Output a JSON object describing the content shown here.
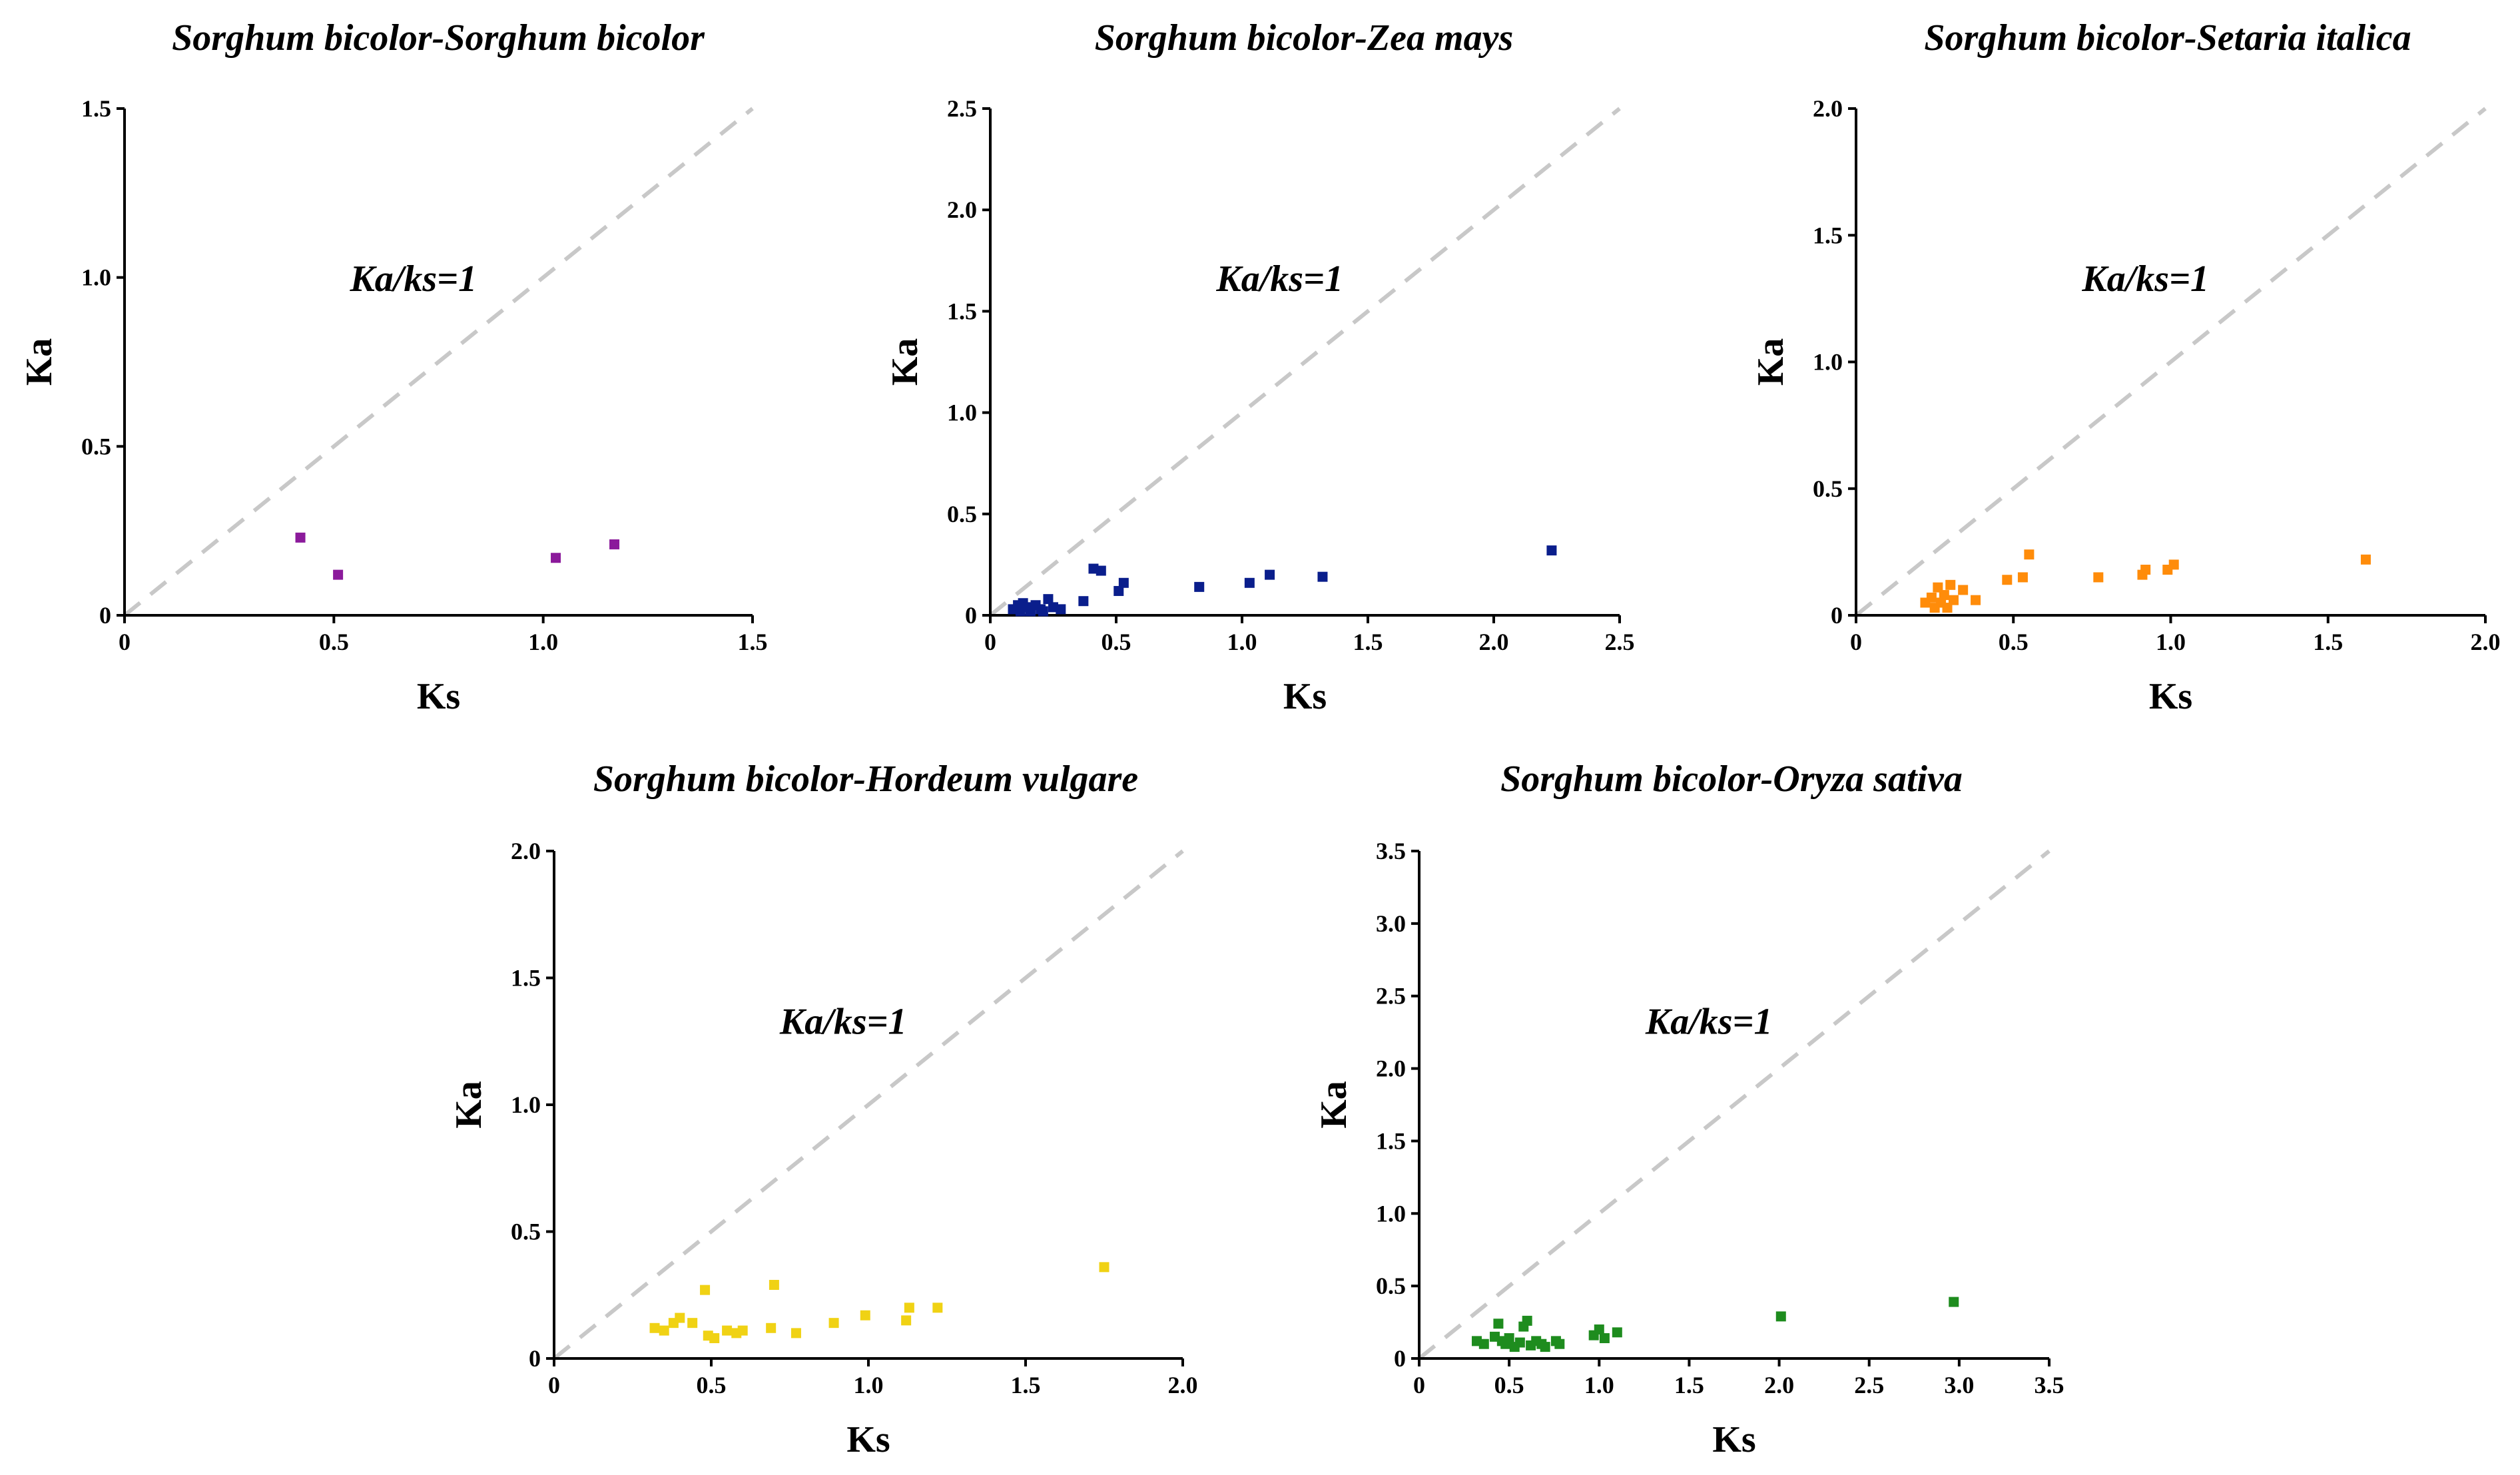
{
  "chart_data": [
    {
      "type": "scatter",
      "title": "Sorghum bicolor-Sorghum bicolor",
      "xlabel": "Ks",
      "ylabel": "Ka",
      "xlim": [
        0,
        1.5
      ],
      "ylim": [
        0,
        1.5
      ],
      "xticks": [
        "0",
        "0.5",
        "1.0",
        "1.5"
      ],
      "yticks": [
        "0",
        "0.5",
        "1.0",
        "1.5"
      ],
      "reference_line": {
        "label": "Ka/ks=1",
        "slope": 1
      },
      "color": "#8B1A9B",
      "points": [
        [
          0.42,
          0.23
        ],
        [
          0.51,
          0.12
        ],
        [
          1.03,
          0.17
        ],
        [
          1.17,
          0.21
        ]
      ]
    },
    {
      "type": "scatter",
      "title": "Sorghum bicolor-Zea mays",
      "xlabel": "Ks",
      "ylabel": "Ka",
      "xlim": [
        0,
        2.5
      ],
      "ylim": [
        0,
        2.5
      ],
      "xticks": [
        "0",
        "0.5",
        "1.0",
        "1.5",
        "2.0",
        "2.5"
      ],
      "yticks": [
        "0",
        "0.5",
        "1.0",
        "1.5",
        "2.0",
        "2.5"
      ],
      "reference_line": {
        "label": "Ka/ks=1",
        "slope": 1
      },
      "color": "#0A1E8C",
      "points": [
        [
          0.09,
          0.03
        ],
        [
          0.11,
          0.05
        ],
        [
          0.12,
          0.02
        ],
        [
          0.13,
          0.06
        ],
        [
          0.15,
          0.04
        ],
        [
          0.16,
          0.02
        ],
        [
          0.18,
          0.05
        ],
        [
          0.2,
          0.03
        ],
        [
          0.21,
          0.02
        ],
        [
          0.23,
          0.08
        ],
        [
          0.25,
          0.04
        ],
        [
          0.28,
          0.03
        ],
        [
          0.37,
          0.07
        ],
        [
          0.41,
          0.23
        ],
        [
          0.44,
          0.22
        ],
        [
          0.51,
          0.12
        ],
        [
          0.53,
          0.16
        ],
        [
          0.83,
          0.14
        ],
        [
          1.03,
          0.16
        ],
        [
          1.11,
          0.2
        ],
        [
          1.32,
          0.19
        ],
        [
          2.23,
          0.32
        ]
      ]
    },
    {
      "type": "scatter",
      "title": "Sorghum bicolor-Setaria italica",
      "xlabel": "Ks",
      "ylabel": "Ka",
      "xlim": [
        0,
        2.0
      ],
      "ylim": [
        0,
        2.0
      ],
      "xticks": [
        "0",
        "0.5",
        "1.0",
        "1.5",
        "2.0"
      ],
      "yticks": [
        "0",
        "0.5",
        "1.0",
        "1.5",
        "2.0"
      ],
      "reference_line": {
        "label": "Ka/ks=1",
        "slope": 1
      },
      "color": "#FF8C0A",
      "points": [
        [
          0.22,
          0.05
        ],
        [
          0.24,
          0.07
        ],
        [
          0.25,
          0.03
        ],
        [
          0.26,
          0.11
        ],
        [
          0.27,
          0.05
        ],
        [
          0.28,
          0.08
        ],
        [
          0.29,
          0.03
        ],
        [
          0.3,
          0.12
        ],
        [
          0.31,
          0.06
        ],
        [
          0.34,
          0.1
        ],
        [
          0.38,
          0.06
        ],
        [
          0.48,
          0.14
        ],
        [
          0.53,
          0.15
        ],
        [
          0.55,
          0.24
        ],
        [
          0.77,
          0.15
        ],
        [
          0.91,
          0.16
        ],
        [
          0.92,
          0.18
        ],
        [
          0.99,
          0.18
        ],
        [
          1.01,
          0.2
        ],
        [
          1.62,
          0.22
        ]
      ]
    },
    {
      "type": "scatter",
      "title": "Sorghum bicolor-Hordeum vulgare",
      "xlabel": "Ks",
      "ylabel": "Ka",
      "xlim": [
        0,
        2.0
      ],
      "ylim": [
        0,
        2.0
      ],
      "xticks": [
        "0",
        "0.5",
        "1.0",
        "1.5",
        "2.0"
      ],
      "yticks": [
        "0",
        "0.5",
        "1.0",
        "1.5",
        "2.0"
      ],
      "reference_line": {
        "label": "Ka/ks=1",
        "slope": 1
      },
      "color": "#F0D214",
      "points": [
        [
          0.32,
          0.12
        ],
        [
          0.35,
          0.11
        ],
        [
          0.38,
          0.14
        ],
        [
          0.4,
          0.16
        ],
        [
          0.44,
          0.14
        ],
        [
          0.48,
          0.27
        ],
        [
          0.49,
          0.09
        ],
        [
          0.51,
          0.08
        ],
        [
          0.55,
          0.11
        ],
        [
          0.58,
          0.1
        ],
        [
          0.6,
          0.11
        ],
        [
          0.69,
          0.12
        ],
        [
          0.7,
          0.29
        ],
        [
          0.77,
          0.1
        ],
        [
          0.89,
          0.14
        ],
        [
          0.99,
          0.17
        ],
        [
          1.12,
          0.15
        ],
        [
          1.13,
          0.2
        ],
        [
          1.22,
          0.2
        ],
        [
          1.75,
          0.36
        ]
      ]
    },
    {
      "type": "scatter",
      "title": "Sorghum bicolor-Oryza sativa",
      "xlabel": "Ks",
      "ylabel": "Ka",
      "xlim": [
        0,
        3.5
      ],
      "ylim": [
        0,
        3.5
      ],
      "xticks": [
        "0",
        "0.5",
        "1.0",
        "1.5",
        "2.0",
        "2.5",
        "3.0",
        "3.5"
      ],
      "yticks": [
        "0",
        "0.5",
        "1.0",
        "1.5",
        "2.0",
        "2.5",
        "3.0",
        "3.5"
      ],
      "reference_line": {
        "label": "Ka/ks=1",
        "slope": 1
      },
      "color": "#1E8C1E",
      "points": [
        [
          0.32,
          0.12
        ],
        [
          0.36,
          0.1
        ],
        [
          0.42,
          0.15
        ],
        [
          0.44,
          0.24
        ],
        [
          0.46,
          0.12
        ],
        [
          0.48,
          0.1
        ],
        [
          0.5,
          0.14
        ],
        [
          0.53,
          0.08
        ],
        [
          0.56,
          0.11
        ],
        [
          0.58,
          0.22
        ],
        [
          0.6,
          0.26
        ],
        [
          0.62,
          0.09
        ],
        [
          0.65,
          0.12
        ],
        [
          0.68,
          0.1
        ],
        [
          0.7,
          0.08
        ],
        [
          0.76,
          0.12
        ],
        [
          0.78,
          0.1
        ],
        [
          0.97,
          0.16
        ],
        [
          1.0,
          0.2
        ],
        [
          1.03,
          0.14
        ],
        [
          1.1,
          0.18
        ],
        [
          2.01,
          0.29
        ],
        [
          2.97,
          0.39
        ]
      ]
    }
  ]
}
